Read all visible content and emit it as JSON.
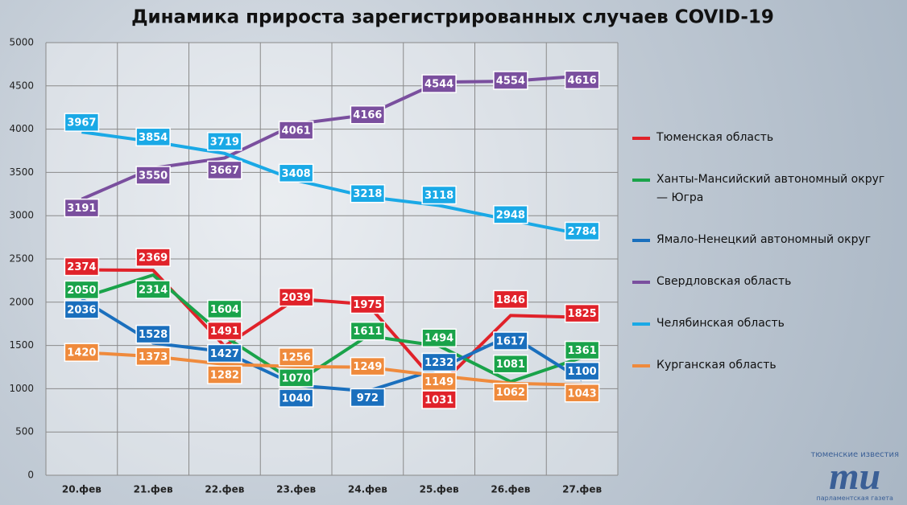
{
  "chart_data": {
    "type": "line",
    "title": "Динамика прироста зарегистрированных случаев COVID-19",
    "categories": [
      "20.фев",
      "21.фев",
      "22.фев",
      "23.фев",
      "24.фев",
      "25.фев",
      "26.фев",
      "27.фев"
    ],
    "series": [
      {
        "name": "Тюменская область",
        "color": "#e0222a",
        "values": [
          2374,
          2369,
          1491,
          2039,
          1975,
          1031,
          1846,
          1825
        ]
      },
      {
        "name": "Ханты-Мансийский автономный округ — Югра",
        "color": "#1aa34a",
        "values": [
          2050,
          2314,
          1604,
          1070,
          1611,
          1494,
          1081,
          1361
        ]
      },
      {
        "name": "Ямало-Ненецкий автономный округ",
        "color": "#1a6fbd",
        "values": [
          2036,
          1528,
          1427,
          1040,
          972,
          1232,
          1617,
          1100
        ]
      },
      {
        "name": "Свердловская область",
        "color": "#7a4f9e",
        "values": [
          3191,
          3550,
          3667,
          4061,
          4166,
          4544,
          4554,
          4616
        ]
      },
      {
        "name": "Челябинская область",
        "color": "#1aa9e6",
        "values": [
          3967,
          3854,
          3719,
          3408,
          3218,
          3118,
          2948,
          2784
        ]
      },
      {
        "name": "Курганская область",
        "color": "#ef8a3c",
        "values": [
          1420,
          1373,
          1282,
          1256,
          1249,
          1149,
          1062,
          1043
        ]
      }
    ],
    "ylim": [
      0,
      5000
    ],
    "yticks": [
      0,
      500,
      1000,
      1500,
      2000,
      2500,
      3000,
      3500,
      4000,
      4500,
      5000
    ],
    "grid": true,
    "legend": "right"
  },
  "logo": {
    "top": "тюменские известия",
    "mark": "ти",
    "bottom": "парламентская газета"
  }
}
